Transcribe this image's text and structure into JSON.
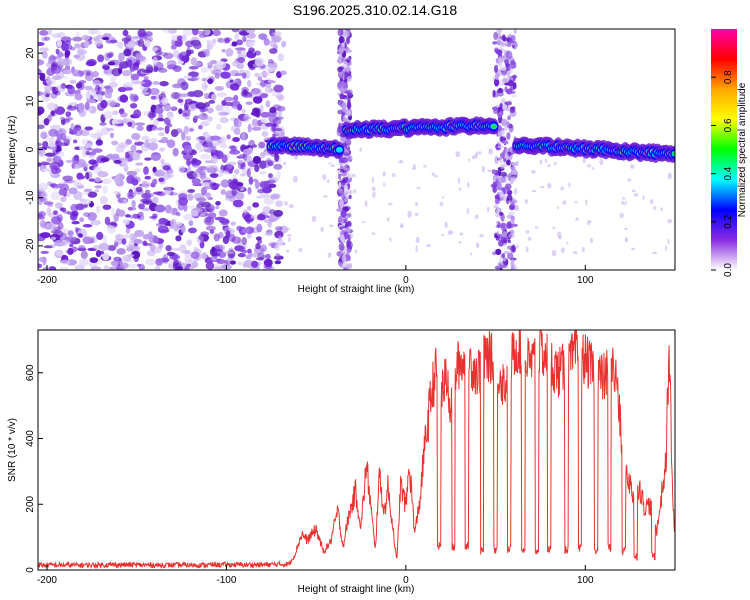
{
  "title": "S196.2025.310.02.14.G18",
  "colors": {
    "line": "#e8322f",
    "frame": "#000000",
    "background": "#ffffff",
    "scatter_dark": "#6a1fd1",
    "scatter_light": "#c9b2ef"
  },
  "chart_data": [
    {
      "type": "heatmap",
      "name": "spectrogram",
      "xlabel": "Height of straight line (km)",
      "ylabel": "Frequency (Hz)",
      "xlim": [
        -205,
        150
      ],
      "ylim": [
        -25,
        25
      ],
      "xticks": [
        -200,
        -100,
        0,
        100
      ],
      "xtick_labels": [
        "-200",
        "-100",
        "0",
        "100"
      ],
      "yticks": [
        -20,
        -10,
        0,
        10,
        20
      ],
      "ytick_labels": [
        "-20",
        "-10",
        "0",
        "10",
        "20"
      ],
      "noise_region_km": [
        -205,
        -72
      ],
      "interference_columns_km": [
        [
          -37,
          -31
        ],
        [
          49,
          61
        ]
      ],
      "ridge": [
        {
          "from": -75,
          "to": -37,
          "freq": [
            1,
            0
          ]
        },
        {
          "from": -33,
          "to": 49,
          "freq": [
            4,
            5
          ]
        },
        {
          "from": 62,
          "to": 150,
          "freq": [
            1,
            -1
          ]
        }
      ],
      "colorbar": {
        "label": "Normalized spectral amplitude",
        "range": [
          0,
          1
        ],
        "ticks": [
          "0.0",
          "0.2",
          "0.4",
          "0.6",
          "0.8"
        ],
        "stops": [
          "#ffffff",
          "#8a2be2",
          "#0000ff",
          "#00ffff",
          "#00ff00",
          "#ffff00",
          "#ffa500",
          "#ff0000",
          "#ff00aa"
        ]
      }
    },
    {
      "type": "line",
      "name": "snr",
      "xlabel": "Height of straight line (km)",
      "ylabel": "SNR (10 * v/v)",
      "xlim": [
        -205,
        150
      ],
      "ylim": [
        0,
        730
      ],
      "xticks": [
        -200,
        -100,
        0,
        100
      ],
      "xtick_labels": [
        "-200",
        "-100",
        "0",
        "100"
      ],
      "yticks": [
        0,
        200,
        400,
        600
      ],
      "ytick_labels": [
        "0",
        "200",
        "400",
        "600"
      ],
      "series": [
        {
          "name": "SNR",
          "x": [
            -205,
            -180,
            -160,
            -140,
            -120,
            -100,
            -80,
            -65,
            -62,
            -58,
            -55,
            -50,
            -46,
            -42,
            -38,
            -35,
            -32,
            -28,
            -25,
            -22,
            -20,
            -17,
            -15,
            -12,
            -10,
            -7,
            -5,
            -3,
            0,
            2,
            5,
            8,
            10,
            13,
            15,
            17,
            20,
            23,
            25,
            28,
            30,
            35,
            40,
            45,
            50,
            55,
            60,
            63,
            65,
            70,
            75,
            80,
            85,
            90,
            95,
            100,
            105,
            110,
            115,
            118,
            120,
            122,
            124,
            126,
            128,
            130,
            133,
            136,
            140,
            143,
            145,
            146,
            147,
            148,
            149,
            150
          ],
          "y": [
            15,
            15,
            16,
            15,
            15,
            16,
            16,
            18,
            45,
            110,
            90,
            125,
            55,
            85,
            180,
            70,
            160,
            240,
            130,
            320,
            220,
            55,
            290,
            175,
            250,
            120,
            25,
            260,
            195,
            320,
            110,
            220,
            350,
            480,
            560,
            610,
            540,
            590,
            500,
            610,
            630,
            640,
            600,
            655,
            630,
            560,
            660,
            680,
            640,
            630,
            670,
            640,
            600,
            620,
            660,
            640,
            600,
            580,
            620,
            560,
            400,
            330,
            280,
            240,
            200,
            260,
            190,
            200,
            120,
            250,
            320,
            560,
            640,
            380,
            180,
            100
          ],
          "dips": [
            {
              "x": 18.5,
              "y": 60
            },
            {
              "x": 26.5,
              "y": 55
            },
            {
              "x": 34,
              "y": 60
            },
            {
              "x": 42.5,
              "y": 45
            },
            {
              "x": 50,
              "y": 50
            },
            {
              "x": 57.5,
              "y": 50
            },
            {
              "x": 65.5,
              "y": 50
            },
            {
              "x": 73,
              "y": 45
            },
            {
              "x": 80,
              "y": 50
            },
            {
              "x": 89.5,
              "y": 50
            },
            {
              "x": 97,
              "y": 55
            },
            {
              "x": 106,
              "y": 45
            },
            {
              "x": 113.5,
              "y": 55
            },
            {
              "x": 121.5,
              "y": 45
            },
            {
              "x": 128,
              "y": 30
            },
            {
              "x": 138,
              "y": 30
            }
          ]
        }
      ]
    }
  ]
}
